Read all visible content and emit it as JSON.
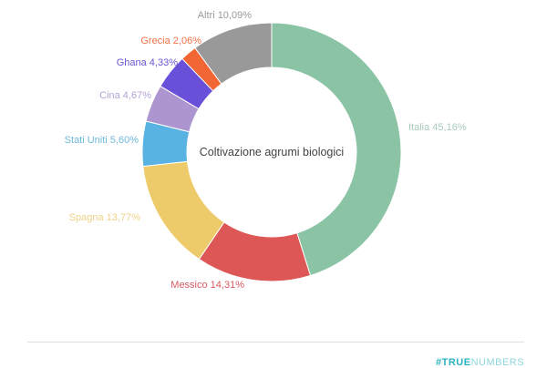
{
  "chart_data": {
    "type": "pie",
    "subtype": "donut",
    "title": "Coltivazione agrumi biologici",
    "categories": [
      "Italia",
      "Messico",
      "Spagna",
      "Stati Uniti",
      "Cina",
      "Ghana",
      "Grecia",
      "Altri"
    ],
    "values": [
      45.16,
      14.31,
      13.77,
      5.6,
      4.67,
      4.33,
      2.06,
      10.09
    ],
    "labels": [
      "Italia 45,16%",
      "Messico 14,31%",
      "Spagna 13,77%",
      "Stati Uniti 5,60%",
      "Cina 4,67%",
      "Ghana 4,33%",
      "Grecia 2,06%",
      "Altri 10,09%"
    ],
    "colors": [
      "#8ac4a4",
      "#dd5757",
      "#eecb6a",
      "#58b3e3",
      "#ad96cf",
      "#6a4fd8",
      "#f26534",
      "#999999"
    ],
    "label_colors": [
      "#a9cbbb",
      "#d85a62",
      "#efd28a",
      "#6fb8dc",
      "#b4a2d4",
      "#6a55d1",
      "#ef7346",
      "#9a9a9a"
    ]
  },
  "footer": {
    "brand_bold": "#TRUE",
    "brand_light": "NUMBERS"
  }
}
